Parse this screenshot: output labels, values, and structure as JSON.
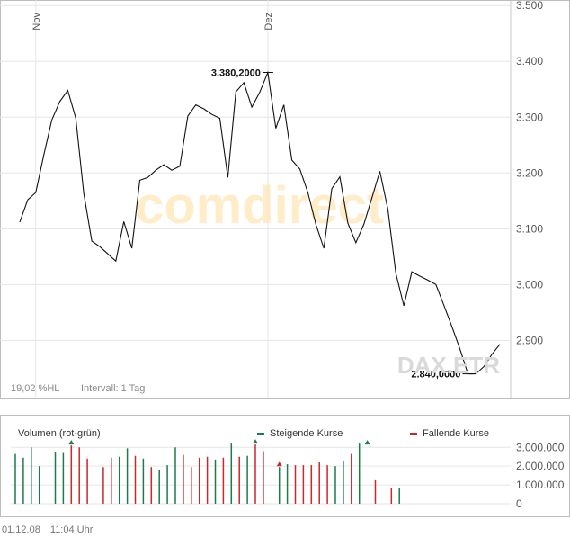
{
  "chart_data": [
    {
      "type": "line",
      "title": "",
      "xlabel": "",
      "ylabel": "",
      "ylim": [
        2820,
        3510
      ],
      "yticks": [
        "3.500",
        "3.400",
        "3.300",
        "3.200",
        "3.100",
        "3.000",
        "2.900"
      ],
      "ytick_values": [
        3500,
        3400,
        3300,
        3200,
        3100,
        3000,
        2900
      ],
      "xticks": [
        "Nov",
        "Dez"
      ],
      "xtick_index": [
        2,
        31
      ],
      "grid": true,
      "x": [
        0,
        1,
        2,
        3,
        4,
        5,
        6,
        7,
        8,
        9,
        10,
        11,
        12,
        13,
        14,
        15,
        16,
        17,
        18,
        19,
        20,
        21,
        22,
        23,
        24,
        25,
        26,
        27,
        28,
        29,
        30,
        31,
        32,
        33,
        34,
        35,
        36,
        37,
        38,
        39,
        40,
        41,
        42,
        43,
        44,
        45,
        46,
        47,
        48,
        49,
        50,
        51,
        52,
        53,
        54,
        55,
        56,
        57,
        58,
        59,
        60
      ],
      "values": [
        3112,
        3152,
        3165,
        3232,
        3295,
        3328,
        3348,
        3298,
        3163,
        3078,
        3068,
        3055,
        3042,
        3113,
        3065,
        3187,
        3192,
        3205,
        3215,
        3205,
        3212,
        3302,
        3322,
        3315,
        3305,
        3298,
        3192,
        3345,
        3362,
        3318,
        3345,
        3380,
        3280,
        3322,
        3223,
        3207,
        3165,
        3108,
        3065,
        3172,
        3193,
        3110,
        3075,
        3108,
        3155,
        3203,
        3135,
        3020,
        2962,
        3023,
        3015,
        3008,
        3000,
        2963,
        2925,
        2885,
        2840,
        2840,
        2853,
        2875,
        2893
      ],
      "annotations": [
        {
          "label": "3.380,2000",
          "index": 31,
          "value": 3380.2
        },
        {
          "label": "2.840,0000",
          "index": 56,
          "value": 2840.0
        }
      ],
      "watermark": "comdirect",
      "instrument": "DAX.ETR",
      "footer_left": "19,02 %HL",
      "footer_interval": "Intervall: 1 Tag"
    },
    {
      "type": "bar",
      "title": "Volumen (rot-grün)",
      "legend": [
        {
          "label": "Steigende Kurse",
          "color": "#1e7a4e"
        },
        {
          "label": "Fallende Kurse",
          "color": "#c62a2a"
        }
      ],
      "ylim": [
        0,
        3300000
      ],
      "yticks": [
        "3.000.000",
        "2.000.000",
        "1.000.000",
        "0"
      ],
      "ytick_values": [
        3000000,
        2000000,
        1000000,
        0
      ],
      "directions": [
        "up",
        "up",
        "up",
        "up",
        "down",
        "up",
        "up",
        "down",
        "down",
        "down",
        "up",
        "down",
        "down",
        "up",
        "up",
        "down",
        "up",
        "down",
        "up",
        "up",
        "up",
        "down",
        "down",
        "down",
        "down",
        "up",
        "down",
        "up",
        "down",
        "up",
        "down",
        "down",
        "up",
        "up",
        "up",
        "down",
        "down",
        "down",
        "down",
        "down",
        "up",
        "up",
        "down",
        "up",
        "down",
        "down",
        "down",
        "down",
        "up",
        "up",
        "down",
        "down",
        "down",
        "up",
        "down",
        "up",
        "down",
        "down",
        "down",
        "down",
        "up"
      ],
      "values": [
        2650000,
        2450000,
        3000000,
        2000000,
        null,
        2750000,
        2700000,
        3100000,
        3000000,
        2400000,
        null,
        1950000,
        2450000,
        2500000,
        2950000,
        2550000,
        2400000,
        1950000,
        1800000,
        2050000,
        3000000,
        2600000,
        1950000,
        2450000,
        2500000,
        2350000,
        2450000,
        3200000,
        2500000,
        2550000,
        3150000,
        2800000,
        null,
        1950000,
        2100000,
        2050000,
        2050000,
        2050000,
        2200000,
        2050000,
        2000000,
        2250000,
        2650000,
        3200000,
        null,
        1250000,
        null,
        850000,
        850000,
        null,
        null,
        null,
        null,
        null,
        null,
        null,
        null,
        null,
        null,
        null,
        null
      ],
      "markers": [
        {
          "index": 7,
          "direction": "up"
        },
        {
          "index": 30,
          "direction": "up"
        },
        {
          "index": 33,
          "direction": "down"
        },
        {
          "index": 44,
          "direction": "up"
        }
      ]
    }
  ],
  "footer": {
    "date": "01.12.08",
    "time": "11:04 Uhr"
  }
}
